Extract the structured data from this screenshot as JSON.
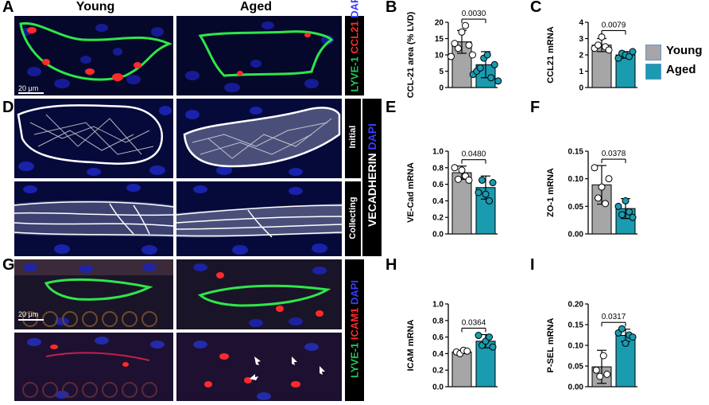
{
  "panel_letters": [
    "A",
    "B",
    "C",
    "D",
    "E",
    "F",
    "G",
    "H",
    "I"
  ],
  "column_headers": [
    "Young",
    "Aged"
  ],
  "row_a": {
    "stain_labels": [
      {
        "text": "LYVE-1",
        "color": "#22c55e"
      },
      {
        "text": "CCL21",
        "color": "#ff2a2a"
      },
      {
        "text": "DAPI",
        "color": "#3b3bff"
      }
    ],
    "scale_bar": "20 μm"
  },
  "row_d": {
    "row_labels": [
      "Initial",
      "Collecting"
    ],
    "stain_main": "VECADHERIN",
    "stain_dapi": "DAPI"
  },
  "row_g": {
    "stain_labels": [
      {
        "text": "LYVE-1",
        "color": "#22c55e"
      },
      {
        "text": "ICAM1",
        "color": "#ff2a2a"
      },
      {
        "text": "DAPI",
        "color": "#3b3bff"
      }
    ],
    "scale_bar": "20 μm"
  },
  "legend": {
    "items": [
      {
        "label": "Young",
        "color": "#a6a6a6"
      },
      {
        "label": "Aged",
        "color": "#1a9bb0"
      }
    ]
  },
  "colors": {
    "young": "#a6a6a6",
    "aged": "#1a9bb0"
  },
  "chart_data": [
    {
      "id": "B",
      "type": "bar",
      "ylabel": "CCL-21 area (% LVD)",
      "yticks": [
        "0",
        "5",
        "10",
        "15",
        "20"
      ],
      "ylim": [
        0,
        20
      ],
      "categories": [
        "Young",
        "Aged"
      ],
      "values": [
        14,
        7
      ],
      "err": [
        3.5,
        4
      ],
      "points": [
        [
          9.5,
          13.5,
          12,
          17,
          19,
          13,
          10
        ],
        [
          4,
          5,
          6,
          9,
          10,
          3,
          7,
          2
        ]
      ],
      "p_value": "0.0030"
    },
    {
      "id": "C",
      "type": "bar",
      "ylabel": "CCL21 mRNA",
      "yticks": [
        "0",
        "1",
        "2",
        "3",
        "4"
      ],
      "ylim": [
        0,
        4
      ],
      "categories": [
        "Young",
        "Aged"
      ],
      "values": [
        2.6,
        2.0
      ],
      "err": [
        0.4,
        0.2
      ],
      "points": [
        [
          2.4,
          2.6,
          3.1,
          2.5,
          2.3
        ],
        [
          1.8,
          2.1,
          2.0,
          1.9,
          2.2
        ]
      ],
      "p_value": "0.0079"
    },
    {
      "id": "E",
      "type": "bar",
      "ylabel": "VE-Cad mRNA",
      "yticks": [
        "0.0",
        "0.2",
        "0.4",
        "0.6",
        "0.8",
        "1.0"
      ],
      "ylim": [
        0,
        1.0
      ],
      "categories": [
        "Young",
        "Aged"
      ],
      "values": [
        0.74,
        0.56
      ],
      "err": [
        0.08,
        0.14
      ],
      "points": [
        [
          0.8,
          0.66,
          0.77,
          0.7,
          0.65
        ],
        [
          0.5,
          0.65,
          0.48,
          0.4,
          0.62
        ]
      ],
      "p_value": "0.0480"
    },
    {
      "id": "F",
      "type": "bar",
      "ylabel": "ZO-1 mRNA",
      "yticks": [
        "0.00",
        "0.05",
        "0.10",
        "0.15"
      ],
      "ylim": [
        0,
        0.15
      ],
      "categories": [
        "Young",
        "Aged"
      ],
      "values": [
        0.089,
        0.046
      ],
      "err": [
        0.035,
        0.018
      ],
      "points": [
        [
          0.12,
          0.065,
          0.085,
          0.055,
          0.1
        ],
        [
          0.05,
          0.035,
          0.06,
          0.04,
          0.03
        ]
      ],
      "p_value": "0.0378"
    },
    {
      "id": "H",
      "type": "bar",
      "ylabel": "ICAM mRNA",
      "yticks": [
        "0.0",
        "0.2",
        "0.4",
        "0.6",
        "0.8",
        "1.0"
      ],
      "ylim": [
        0,
        1.0
      ],
      "categories": [
        "Young",
        "Aged"
      ],
      "values": [
        0.42,
        0.55
      ],
      "err": [
        0.02,
        0.08
      ],
      "points": [
        [
          0.42,
          0.4,
          0.44,
          0.43
        ],
        [
          0.62,
          0.5,
          0.55,
          0.6,
          0.48
        ]
      ],
      "p_value": "0.0364"
    },
    {
      "id": "I",
      "type": "bar",
      "ylabel": "P-SEL mRNA",
      "yticks": [
        "0.00",
        "0.05",
        "0.10",
        "0.15",
        "0.20"
      ],
      "ylim": [
        0,
        0.2
      ],
      "categories": [
        "Young",
        "Aged"
      ],
      "values": [
        0.048,
        0.124
      ],
      "err": [
        0.04,
        0.015
      ],
      "points": [
        [
          0.04,
          0.025,
          0.075,
          0.03
        ],
        [
          0.13,
          0.14,
          0.105,
          0.125,
          0.12
        ]
      ],
      "p_value": "0.0317"
    }
  ]
}
